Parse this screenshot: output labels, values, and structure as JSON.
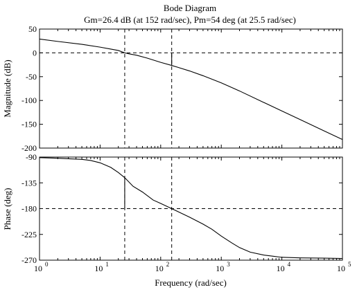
{
  "chart_data": [
    {
      "type": "line",
      "title": "Bode Diagram",
      "subtitle": "Gm=26.4 dB (at 152 rad/sec), Pm=54 deg (at 25.5 rad/sec)",
      "xlabel": "",
      "ylabel": "Magnitude (dB)",
      "xscale": "log",
      "xlim": [
        1,
        100000
      ],
      "ylim": [
        -200,
        50
      ],
      "yticks": [
        50,
        0,
        -50,
        -100,
        -150,
        -200
      ],
      "grid": false,
      "series": [
        {
          "x": [
            1,
            2,
            5,
            10,
            15,
            20,
            25.5,
            30,
            40,
            60,
            100,
            152,
            200,
            300,
            500,
            1000,
            2000,
            5000,
            10000,
            20000,
            50000,
            100000
          ],
          "values": [
            29,
            24,
            18,
            12,
            8,
            5,
            0,
            -2,
            -5,
            -11,
            -20,
            -26.4,
            -31,
            -38,
            -48,
            -63,
            -80,
            -104,
            -122,
            -140,
            -164,
            -182
          ]
        }
      ],
      "annotations": [
        {
          "kind": "dashed-hline",
          "y": 0
        },
        {
          "kind": "dashed-vline",
          "x": 25.5
        },
        {
          "kind": "dashed-vline",
          "x": 152
        },
        {
          "kind": "gain-margin-marker",
          "x": 152,
          "y_from": 0,
          "y_to": -26.4
        }
      ]
    },
    {
      "type": "line",
      "xlabel": "Frequency (rad/sec)",
      "ylabel": "Phase (deg)",
      "xscale": "log",
      "xlim": [
        1,
        100000
      ],
      "ylim": [
        -270,
        -90
      ],
      "xticks": [
        "10",
        "10",
        "10",
        "10",
        "10",
        "10"
      ],
      "xtick_exponents": [
        "0",
        "1",
        "2",
        "3",
        "4",
        "5"
      ],
      "yticks": [
        -90,
        -135,
        -180,
        -225,
        -270
      ],
      "grid": false,
      "series": [
        {
          "x": [
            1,
            2,
            3,
            5,
            7,
            10,
            15,
            20,
            25.5,
            35,
            50,
            75,
            100,
            152,
            200,
            300,
            500,
            700,
            1000,
            1500,
            2000,
            3000,
            5000,
            7000,
            10000,
            20000,
            50000,
            100000
          ],
          "values": [
            -91,
            -92,
            -93,
            -94,
            -96,
            -100,
            -108,
            -117,
            -126,
            -141,
            -151,
            -165,
            -171,
            -180,
            -186,
            -195,
            -207,
            -216,
            -228,
            -240,
            -248,
            -256,
            -261,
            -263,
            -265,
            -266,
            -266.5,
            -267
          ]
        }
      ],
      "annotations": [
        {
          "kind": "dashed-hline",
          "y": -180
        },
        {
          "kind": "dashed-vline",
          "x": 25.5
        },
        {
          "kind": "dashed-vline",
          "x": 152
        },
        {
          "kind": "phase-margin-marker",
          "x": 25.5,
          "y_from": -126,
          "y_to": -180
        }
      ]
    }
  ]
}
